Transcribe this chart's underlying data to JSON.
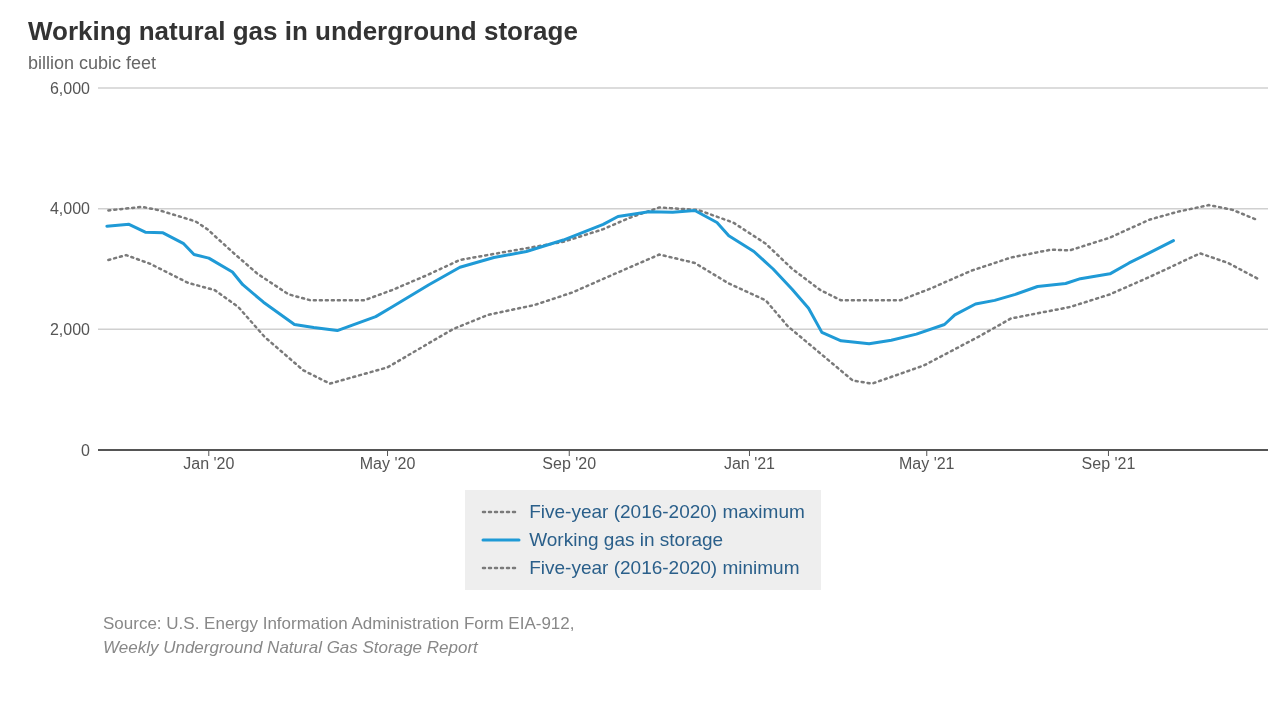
{
  "chart_data": {
    "type": "line",
    "title": "Working natural gas in underground storage",
    "ylabel": "billion cubic feet",
    "xlim": [
      "2019-10-18",
      "2021-12-18"
    ],
    "xticks": [
      {
        "value": "2020-01-01",
        "label": "Jan '20"
      },
      {
        "value": "2020-05-01",
        "label": "May '20"
      },
      {
        "value": "2020-09-01",
        "label": "Sep '20"
      },
      {
        "value": "2021-01-01",
        "label": "Jan '21"
      },
      {
        "value": "2021-05-01",
        "label": "May '21"
      },
      {
        "value": "2021-09-01",
        "label": "Sep '21"
      }
    ],
    "ylim": [
      0,
      6000
    ],
    "yticks": [
      0,
      {
        "value": 2000,
        "label": "2,000"
      },
      {
        "value": 4000,
        "label": "4,000"
      },
      {
        "value": 6000,
        "label": "6,000"
      }
    ],
    "grid": "y",
    "legend": "bottom",
    "marker": "none",
    "series": [
      {
        "name": "Five-year (2016-2020) maximum",
        "color": "#7a7a7a",
        "line_style": "dotted",
        "x": [
          "2019-10-25",
          "2019-11-17",
          "2019-11-29",
          "2019-12-23",
          "2019-12-31",
          "2020-01-18",
          "2020-02-03",
          "2020-02-24",
          "2020-03-10",
          "2020-04-15",
          "2020-05-04",
          "2020-05-27",
          "2020-06-19",
          "2020-07-26",
          "2020-08-28",
          "2020-09-24",
          "2020-10-12",
          "2020-11-01",
          "2020-11-27",
          "2020-12-21",
          "2021-01-12",
          "2021-01-30",
          "2021-02-18",
          "2021-03-04",
          "2021-04-13",
          "2021-05-04",
          "2021-05-31",
          "2021-06-27",
          "2021-07-24",
          "2021-08-06",
          "2021-09-02",
          "2021-09-29",
          "2021-10-18",
          "2021-11-08",
          "2021-11-24",
          "2021-12-11"
        ],
        "values": [
          3970,
          4030,
          3970,
          3790,
          3660,
          3260,
          2920,
          2580,
          2480,
          2480,
          2650,
          2890,
          3150,
          3310,
          3450,
          3660,
          3850,
          4020,
          3980,
          3770,
          3420,
          3000,
          2650,
          2480,
          2480,
          2680,
          2970,
          3190,
          3320,
          3310,
          3520,
          3820,
          3950,
          4060,
          3980,
          3810
        ]
      },
      {
        "name": "Working gas in storage",
        "color": "#1f9ad6",
        "line_style": "solid",
        "x": [
          "2019-10-24",
          "2019-11-08",
          "2019-11-19",
          "2019-12-01",
          "2019-12-15",
          "2019-12-22",
          "2020-01-01",
          "2020-01-17",
          "2020-01-24",
          "2020-02-07",
          "2020-02-28",
          "2020-03-12",
          "2020-03-28",
          "2020-04-23",
          "2020-05-04",
          "2020-05-29",
          "2020-06-19",
          "2020-07-12",
          "2020-08-03",
          "2020-08-28",
          "2020-09-24",
          "2020-10-04",
          "2020-10-25",
          "2020-11-10",
          "2020-11-25",
          "2020-12-10",
          "2020-12-18",
          "2021-01-04",
          "2021-01-17",
          "2021-01-30",
          "2021-02-10",
          "2021-02-19",
          "2021-03-04",
          "2021-03-12",
          "2021-03-23",
          "2021-04-07",
          "2021-04-24",
          "2021-05-13",
          "2021-05-20",
          "2021-06-03",
          "2021-06-16",
          "2021-06-30",
          "2021-07-15",
          "2021-08-03",
          "2021-08-13",
          "2021-09-02",
          "2021-09-15",
          "2021-09-29",
          "2021-10-15"
        ],
        "values": [
          3710,
          3740,
          3610,
          3600,
          3420,
          3240,
          3180,
          2950,
          2740,
          2450,
          2080,
          2030,
          1980,
          2210,
          2370,
          2740,
          3030,
          3190,
          3290,
          3480,
          3740,
          3870,
          3950,
          3940,
          3970,
          3770,
          3550,
          3290,
          3000,
          2660,
          2350,
          1950,
          1810,
          1790,
          1760,
          1820,
          1920,
          2080,
          2240,
          2420,
          2480,
          2580,
          2710,
          2760,
          2840,
          2920,
          3100,
          3270,
          3470
        ]
      },
      {
        "name": "Five-year (2016-2020) minimum",
        "color": "#7a7a7a",
        "line_style": "dotted",
        "x": [
          "2019-10-25",
          "2019-11-06",
          "2019-11-22",
          "2019-12-18",
          "2020-01-05",
          "2020-01-21",
          "2020-02-08",
          "2020-03-05",
          "2020-03-23",
          "2020-05-01",
          "2020-06-14",
          "2020-07-08",
          "2020-08-08",
          "2020-09-03",
          "2020-09-29",
          "2020-11-01",
          "2020-11-25",
          "2020-12-18",
          "2021-01-12",
          "2021-01-27",
          "2021-02-20",
          "2021-03-12",
          "2021-03-25",
          "2021-04-29",
          "2021-06-06",
          "2021-06-27",
          "2021-08-06",
          "2021-09-02",
          "2021-09-29",
          "2021-11-02",
          "2021-11-21",
          "2021-12-11"
        ],
        "values": [
          3150,
          3230,
          3090,
          2770,
          2650,
          2370,
          1870,
          1320,
          1100,
          1370,
          2000,
          2240,
          2400,
          2610,
          2890,
          3240,
          3100,
          2760,
          2480,
          2050,
          1560,
          1150,
          1100,
          1400,
          1890,
          2180,
          2370,
          2580,
          2870,
          3260,
          3100,
          2840
        ]
      }
    ],
    "annotations": [
      "Source: U.S. Energy Information Administration Form EIA-912,",
      "Weekly Underground Natural Gas Storage Report"
    ]
  }
}
